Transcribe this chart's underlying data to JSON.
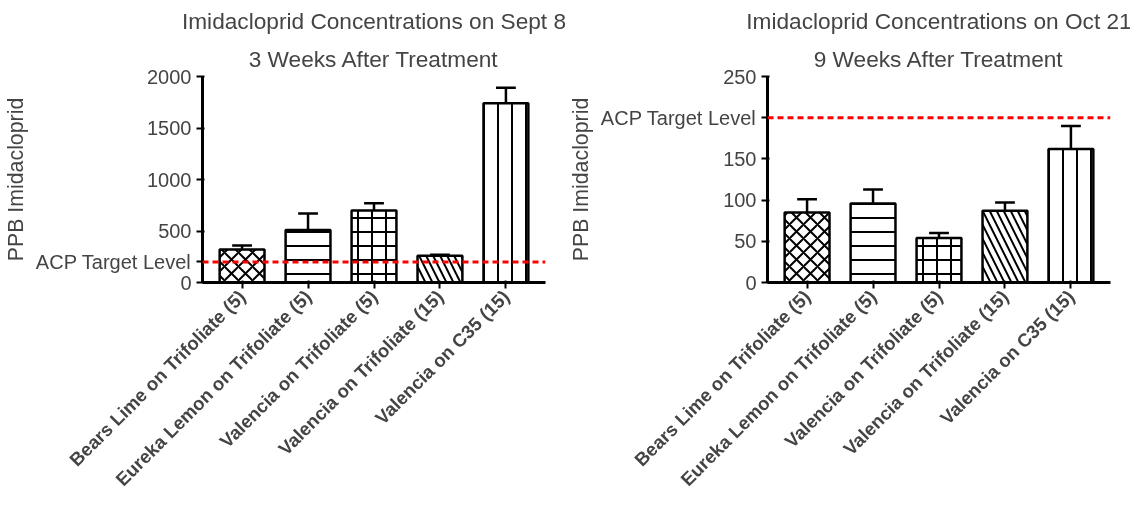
{
  "chart_data": [
    {
      "type": "bar",
      "title": "Imidacloprid Concentrations on Sept 8",
      "subtitle": "3 Weeks After Treatment",
      "ylabel": "PPB Imidacloprid",
      "categories": [
        "Bears Lime on Trifoliate (5)",
        "Eureka Lemon on Trifoliate (5)",
        "Valencia on Trifoliate (5)",
        "Valencia on Trifoliate (15)",
        "Valencia on C35 (15)"
      ],
      "values": [
        320,
        510,
        700,
        260,
        1740
      ],
      "color": "#ffffff",
      "errors": [
        [
          320,
          360
        ],
        [
          510,
          670
        ],
        [
          700,
          770
        ],
        [
          260,
          270
        ],
        [
          1740,
          1890
        ]
      ],
      "ylim": [
        0,
        2000
      ],
      "yticks": [
        0,
        {
          "value": 200,
          "label": "ACP Target Level"
        },
        500,
        1000,
        1500,
        2000
      ],
      "ref_lines": [
        {
          "axis": "y",
          "value": 200,
          "color": "#ff0000",
          "line_style": "dashed"
        }
      ],
      "grid": false
    },
    {
      "type": "bar",
      "title": "Imidacloprid Concentrations on Oct 21",
      "subtitle": "9 Weeks After Treatment",
      "ylabel": "PPB Imidacloprid",
      "categories": [
        "Bears Lime on Trifoliate (5)",
        "Eureka Lemon on Trifoliate (5)",
        "Valencia on Trifoliate (5)",
        "Valencia on Trifoliate (15)",
        "Valencia on C35 (15)"
      ],
      "values": [
        85,
        96,
        54,
        87,
        162
      ],
      "color": "#ffffff",
      "errors": [
        [
          85,
          101
        ],
        [
          96,
          113
        ],
        [
          54,
          60
        ],
        [
          87,
          97
        ],
        [
          162,
          190
        ]
      ],
      "ylim": [
        0,
        250
      ],
      "yticks": [
        0,
        50,
        100,
        150,
        {
          "value": 200,
          "label": "ACP Target Level"
        },
        250
      ],
      "ref_lines": [
        {
          "axis": "y",
          "value": 200,
          "color": "#ff0000",
          "line_style": "dashed"
        }
      ],
      "grid": false
    }
  ]
}
